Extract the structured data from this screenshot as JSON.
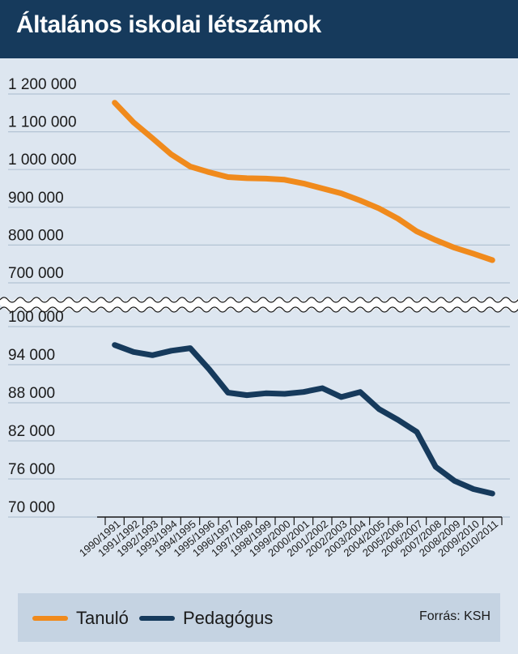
{
  "title": "Általános iskolai létszámok",
  "chart_data": {
    "type": "line",
    "categories": [
      "1990/1991",
      "1991/1992",
      "1992/1993",
      "1993/1994",
      "1994/1995",
      "1995/1996",
      "1996/1997",
      "1997/1998",
      "1998/1999",
      "1999/2000",
      "2000/2001",
      "2001/2002",
      "2002/2003",
      "2003/2004",
      "2004/2005",
      "2005/2006",
      "2006/2007",
      "2007/2008",
      "2008/2009",
      "2009/2010",
      "2010/2011"
    ],
    "panels": [
      {
        "series": [
          {
            "name": "Tanuló",
            "color": "#f08a1c",
            "values": [
              1177000,
              1125000,
              1083000,
              1040000,
              1008000,
              993000,
              980000,
              977000,
              976000,
              973000,
              963000,
              950000,
              937000,
              918000,
              897000,
              870000,
              836000,
              813000,
              793000,
              777000,
              760000
            ]
          }
        ],
        "ylim": [
          700000,
          1200000
        ],
        "yticks": [
          1200000,
          1100000,
          1000000,
          900000,
          800000,
          700000
        ],
        "ytick_labels": [
          "1 200 000",
          "1 100 000",
          "1 000 000",
          "900 000",
          "800 000",
          "700 000"
        ]
      },
      {
        "series": [
          {
            "name": "Pedagógus",
            "color": "#163a5c",
            "values": [
              97100,
              96000,
              95500,
              96200,
              96600,
              93300,
              89600,
              89200,
              89500,
              89400,
              89700,
              90300,
              88900,
              89700,
              87000,
              85300,
              83400,
              77900,
              75700,
              74400,
              73700
            ]
          }
        ],
        "ylim": [
          70000,
          100000
        ],
        "yticks": [
          100000,
          94000,
          88000,
          82000,
          76000,
          70000
        ],
        "ytick_labels": [
          "100 000",
          "94 000",
          "88 000",
          "82 000",
          "76 000",
          "70 000"
        ]
      }
    ],
    "axis_break": true,
    "grid": true,
    "legend_position": "bottom"
  },
  "legend": {
    "items": [
      {
        "label": "Tanuló",
        "color": "#f08a1c"
      },
      {
        "label": "Pedagógus",
        "color": "#163a5c"
      }
    ],
    "source": "Forrás: KSH"
  }
}
